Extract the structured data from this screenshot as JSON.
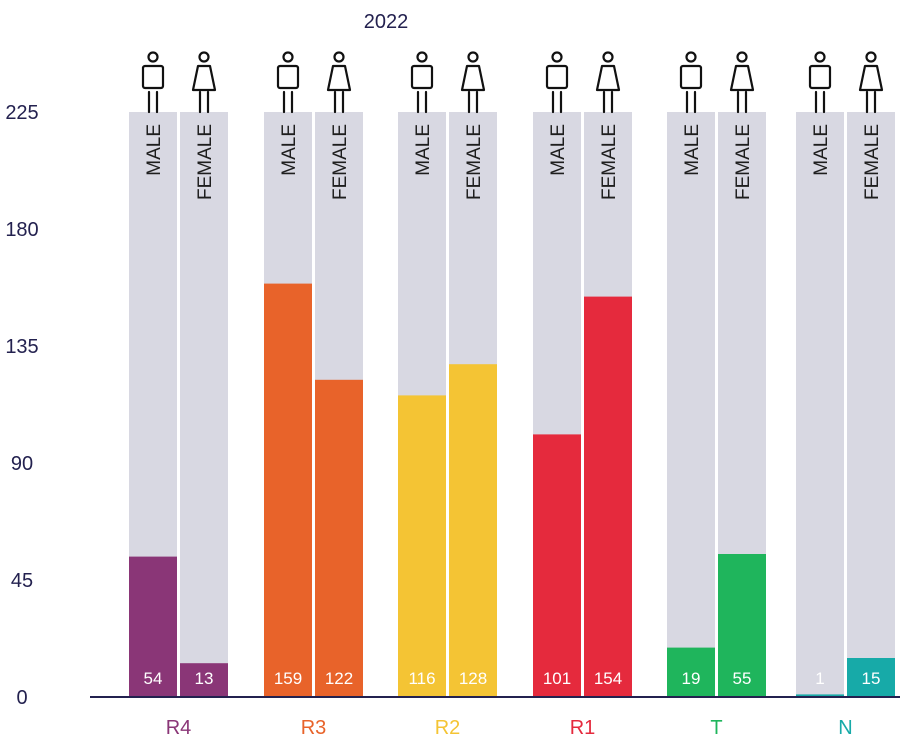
{
  "chart_data": {
    "type": "bar",
    "title": "2022",
    "xlabel": "",
    "ylabel": "",
    "ylim": [
      0,
      225
    ],
    "yticks": [
      0,
      45,
      90,
      135,
      180,
      225
    ],
    "bar_labels": [
      "MALE",
      "FEMALE"
    ],
    "groups": [
      {
        "label": "R4",
        "color": "#8a3677",
        "values": [
          54,
          13
        ]
      },
      {
        "label": "R3",
        "color": "#e8632a",
        "values": [
          159,
          122
        ]
      },
      {
        "label": "R2",
        "color": "#f4c434",
        "values": [
          116,
          128
        ]
      },
      {
        "label": "R1",
        "color": "#e52a3d",
        "values": [
          101,
          154
        ]
      },
      {
        "label": "T",
        "color": "#1fb55c",
        "values": [
          19,
          55
        ]
      },
      {
        "label": "N",
        "color": "#17aaa8",
        "values": [
          1,
          15
        ]
      }
    ],
    "background_color": "#d8d8e2",
    "axis_color": "#23214f",
    "icons": [
      "male-person-icon",
      "female-person-icon"
    ],
    "grid": false,
    "legend": "none"
  }
}
